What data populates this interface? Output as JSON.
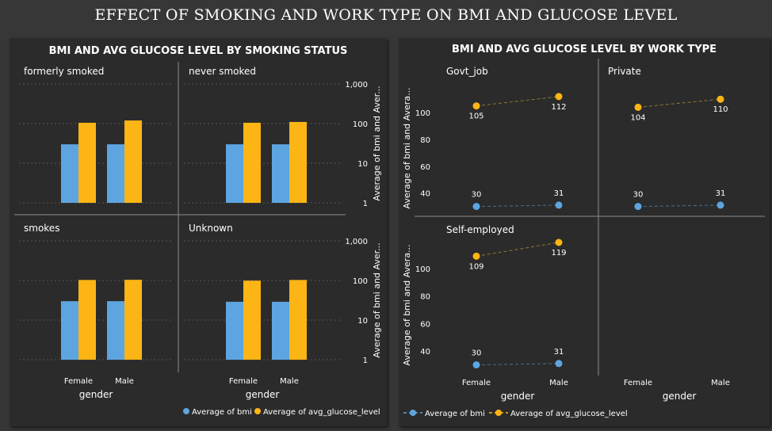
{
  "page": {
    "title": "EFFECT OF SMOKING AND WORK TYPE ON BMI AND GLUCOSE LEVEL"
  },
  "chart_data": [
    {
      "type": "bar",
      "title": "BMI AND AVG GLUCOSE LEVEL BY SMOKING STATUS",
      "xlabel": "gender",
      "ylabel": "Average of bmi and Aver...",
      "yscale": "log",
      "ylim": [
        1,
        1000
      ],
      "yticks": [
        "1",
        "10",
        "100",
        "1,000"
      ],
      "grid": true,
      "legend_position": "bottom-right",
      "categories": [
        "Female",
        "Male"
      ],
      "legend": [
        "Average of bmi",
        "Average of avg_glucose_level"
      ],
      "colors": {
        "bmi": "#5DA5E0",
        "glucose": "#FDB515"
      },
      "panels": [
        {
          "name": "formerly smoked",
          "bmi": [
            30,
            30
          ],
          "glucose": [
            105,
            120
          ]
        },
        {
          "name": "never smoked",
          "bmi": [
            30,
            30
          ],
          "glucose": [
            105,
            110
          ]
        },
        {
          "name": "smokes",
          "bmi": [
            30,
            30
          ],
          "glucose": [
            103,
            104
          ]
        },
        {
          "name": "Unknown",
          "bmi": [
            29,
            29
          ],
          "glucose": [
            99,
            103
          ]
        }
      ]
    },
    {
      "type": "line",
      "title": "BMI AND AVG GLUCOSE LEVEL BY WORK TYPE",
      "xlabel": "gender",
      "ylabel": "Average of bmi and Avera...",
      "ylim": [
        28,
        119
      ],
      "yticks": [
        "40",
        "60",
        "80",
        "100"
      ],
      "legend_position": "bottom-left",
      "categories": [
        "Female",
        "Male"
      ],
      "legend": [
        "Average of bmi",
        "Average of avg_glucose_level"
      ],
      "colors": {
        "bmi": "#5DA5E0",
        "glucose": "#FDB515"
      },
      "panels": [
        {
          "name": "Govt_job",
          "bmi": [
            30,
            31
          ],
          "glucose": [
            105,
            112
          ],
          "bmi_labels": [
            "30",
            "31"
          ],
          "glucose_labels": [
            "105",
            "112"
          ]
        },
        {
          "name": "Private",
          "bmi": [
            30,
            31
          ],
          "glucose": [
            104,
            110
          ],
          "bmi_labels": [
            "30",
            "31"
          ],
          "glucose_labels": [
            "104",
            "110"
          ]
        },
        {
          "name": "Self-employed",
          "bmi": [
            30,
            31
          ],
          "glucose": [
            109,
            119
          ],
          "bmi_labels": [
            "30",
            "31"
          ],
          "glucose_labels": [
            "109",
            "119"
          ]
        }
      ]
    }
  ]
}
